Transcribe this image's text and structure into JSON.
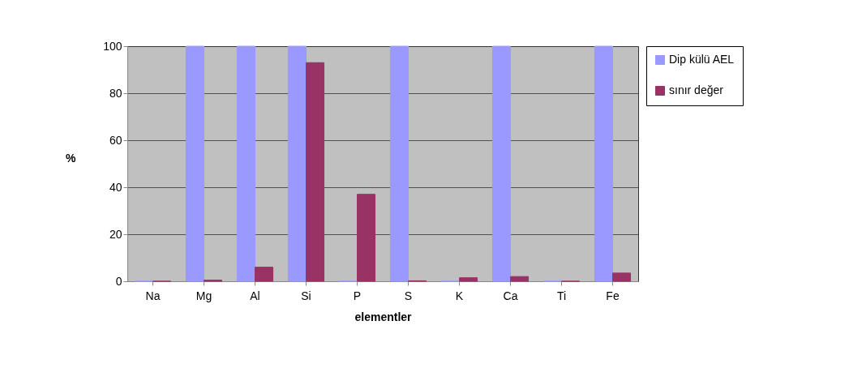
{
  "chart_data": {
    "type": "bar",
    "xlabel": "elementler",
    "ylabel": "%",
    "categories": [
      "Na",
      "Mg",
      "Al",
      "Si",
      "P",
      "S",
      "K",
      "Ca",
      "Ti",
      "Fe"
    ],
    "series": [
      {
        "name": "Dip külü AEL",
        "color": "#9999ff",
        "values": [
          0,
          100,
          100,
          100,
          0,
          100,
          0,
          100,
          0,
          100
        ]
      },
      {
        "name": "sınır değer",
        "color": "#993366",
        "values": [
          0,
          0.5,
          6,
          93,
          37,
          0.2,
          1.5,
          2,
          0,
          3.5
        ]
      }
    ],
    "ylim": [
      0,
      100
    ],
    "yticks": [
      0,
      20,
      40,
      60,
      80,
      100
    ],
    "grid": "y",
    "legend": "right"
  }
}
